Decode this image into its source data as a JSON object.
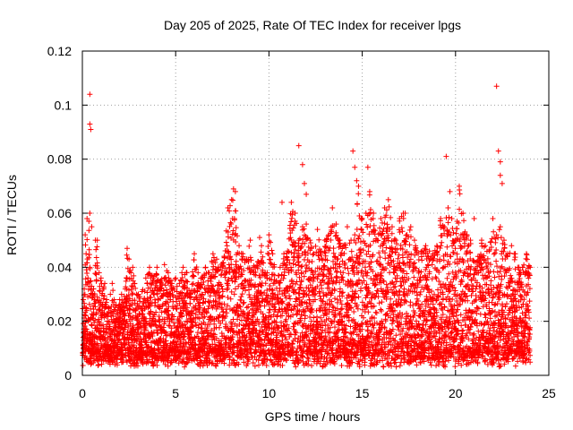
{
  "chart_data": {
    "type": "scatter",
    "title": "Day 205 of 2025, Rate Of TEC Index for receiver lpgs",
    "xlabel": "GPS time / hours",
    "ylabel": "ROTI / TECUs",
    "xlim": [
      0,
      25
    ],
    "ylim": [
      0,
      0.12
    ],
    "xticks": [
      0,
      5,
      10,
      15,
      20,
      25
    ],
    "xtick_labels": [
      "0",
      "5",
      "10",
      "15",
      "20",
      "25"
    ],
    "yticks": [
      0,
      0.02,
      0.04,
      0.06,
      0.08,
      0.1,
      0.12
    ],
    "ytick_labels": [
      "0",
      "0.02",
      "0.04",
      "0.06",
      "0.08",
      "0.1",
      "0.12"
    ],
    "grid": true,
    "marker": "+",
    "color": "#ff0000",
    "series": [
      {
        "name": "ROTI",
        "x": [
          0.05,
          0.1,
          0.15,
          0.2,
          0.25,
          0.3,
          0.35,
          0.4,
          0.45,
          0.5,
          0.55,
          0.6,
          0.65,
          0.7,
          0.8,
          0.9,
          1.0,
          1.1,
          1.2,
          1.3,
          1.4,
          1.5,
          1.6,
          1.7,
          1.8,
          1.9,
          2.0,
          2.1,
          2.2,
          2.3,
          2.4,
          2.5,
          2.6,
          2.7,
          2.8,
          2.9,
          3.0,
          3.2,
          3.4,
          3.6,
          3.8,
          4.0,
          4.2,
          4.4,
          4.6,
          4.8,
          5.0,
          5.2,
          5.4,
          5.6,
          5.8,
          6.0,
          6.2,
          6.4,
          6.6,
          6.8,
          7.0,
          7.2,
          7.4,
          7.6,
          7.8,
          8.0,
          8.2,
          8.4,
          8.6,
          8.8,
          9.0,
          9.2,
          9.4,
          9.6,
          9.8,
          10.0,
          10.2,
          10.4,
          10.6,
          10.8,
          11.0,
          11.2,
          11.4,
          11.6,
          11.8,
          12.0,
          12.2,
          12.4,
          12.6,
          12.8,
          13.0,
          13.2,
          13.4,
          13.6,
          13.8,
          14.0,
          14.2,
          14.4,
          14.6,
          14.8,
          15.0,
          15.2,
          15.4,
          15.6,
          15.8,
          16.0,
          16.2,
          16.4,
          16.6,
          16.8,
          17.0,
          17.2,
          17.4,
          17.6,
          17.8,
          18.0,
          18.2,
          18.4,
          18.6,
          18.8,
          19.0,
          19.2,
          19.4,
          19.6,
          19.8,
          20.0,
          20.2,
          20.4,
          20.6,
          20.8,
          21.0,
          21.2,
          21.4,
          21.6,
          21.8,
          22.0,
          22.2,
          22.4,
          22.6,
          22.8,
          23.0,
          23.2,
          23.4,
          23.6,
          23.8,
          24.0
        ],
        "y": [
          0.028,
          0.032,
          0.052,
          0.045,
          0.058,
          0.036,
          0.057,
          0.04,
          0.035,
          0.033,
          0.03,
          0.032,
          0.028,
          0.05,
          0.05,
          0.038,
          0.036,
          0.032,
          0.034,
          0.028,
          0.025,
          0.03,
          0.034,
          0.028,
          0.026,
          0.024,
          0.028,
          0.03,
          0.027,
          0.032,
          0.047,
          0.043,
          0.038,
          0.04,
          0.034,
          0.03,
          0.03,
          0.031,
          0.036,
          0.04,
          0.036,
          0.04,
          0.035,
          0.041,
          0.038,
          0.034,
          0.036,
          0.034,
          0.04,
          0.038,
          0.03,
          0.045,
          0.038,
          0.036,
          0.04,
          0.038,
          0.045,
          0.043,
          0.04,
          0.044,
          0.062,
          0.065,
          0.068,
          0.048,
          0.045,
          0.043,
          0.05,
          0.04,
          0.042,
          0.048,
          0.038,
          0.052,
          0.045,
          0.035,
          0.04,
          0.045,
          0.046,
          0.064,
          0.06,
          0.05,
          0.055,
          0.056,
          0.05,
          0.045,
          0.054,
          0.046,
          0.05,
          0.052,
          0.062,
          0.056,
          0.05,
          0.048,
          0.055,
          0.05,
          0.052,
          0.07,
          0.058,
          0.06,
          0.068,
          0.06,
          0.05,
          0.058,
          0.062,
          0.065,
          0.055,
          0.05,
          0.058,
          0.06,
          0.052,
          0.055,
          0.05,
          0.045,
          0.046,
          0.048,
          0.046,
          0.045,
          0.048,
          0.058,
          0.055,
          0.062,
          0.058,
          0.05,
          0.07,
          0.06,
          0.052,
          0.05,
          0.042,
          0.044,
          0.05,
          0.048,
          0.046,
          0.058,
          0.052,
          0.055,
          0.05,
          0.045,
          0.048,
          0.045,
          0.04,
          0.04,
          0.045,
          0.04
        ],
        "outliers_x": [
          0.4,
          0.4,
          0.45,
          0.4,
          0.5,
          11.6,
          11.8,
          11.9,
          12.0,
          14.5,
          14.6,
          14.7,
          15.3,
          17.3,
          19.5,
          19.7,
          21.0,
          22.2,
          22.3,
          22.4,
          22.4,
          22.5,
          8.1,
          9.5,
          10.7
        ],
        "outliers_y": [
          0.104,
          0.093,
          0.091,
          0.06,
          0.055,
          0.085,
          0.078,
          0.071,
          0.067,
          0.083,
          0.077,
          0.072,
          0.077,
          0.06,
          0.081,
          0.068,
          0.058,
          0.107,
          0.083,
          0.079,
          0.074,
          0.071,
          0.069,
          0.051,
          0.064
        ]
      }
    ]
  }
}
